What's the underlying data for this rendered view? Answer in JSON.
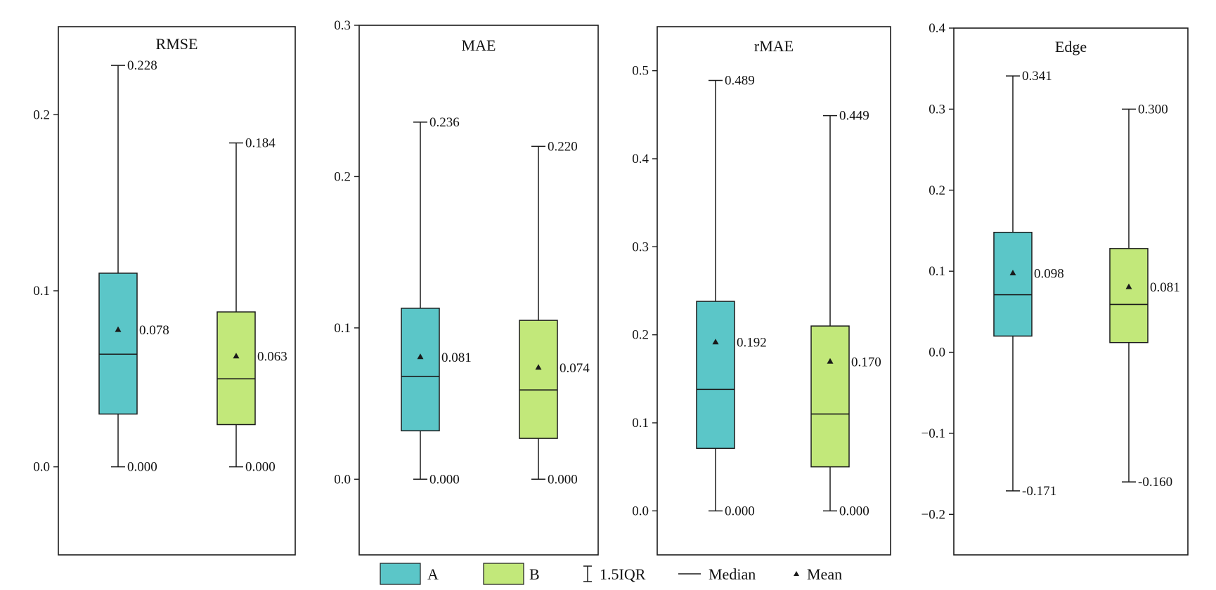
{
  "chart_data": [
    {
      "type": "box",
      "title": "RMSE",
      "ylim": [
        -0.05,
        0.25
      ],
      "yticks": [
        0.0,
        0.1,
        0.2
      ],
      "tick_labels": [
        "0.0",
        "0.1",
        "0.2"
      ],
      "series": [
        {
          "name": "A",
          "whisker_low": 0.0,
          "q1": 0.03,
          "median": 0.064,
          "q3": 0.11,
          "whisker_high": 0.228,
          "mean": 0.078,
          "labels": {
            "high": "0.228",
            "mean": "0.078",
            "low": "0.000"
          }
        },
        {
          "name": "B",
          "whisker_low": 0.0,
          "q1": 0.024,
          "median": 0.05,
          "q3": 0.088,
          "whisker_high": 0.184,
          "mean": 0.063,
          "labels": {
            "high": "0.184",
            "mean": "0.063",
            "low": "0.000"
          }
        }
      ]
    },
    {
      "type": "box",
      "title": "MAE",
      "ylim": [
        -0.05,
        0.3
      ],
      "yticks": [
        0.0,
        0.1,
        0.2,
        0.3
      ],
      "tick_labels": [
        "0.0",
        "0.1",
        "0.2",
        "0.3"
      ],
      "series": [
        {
          "name": "A",
          "whisker_low": 0.0,
          "q1": 0.032,
          "median": 0.068,
          "q3": 0.113,
          "whisker_high": 0.236,
          "mean": 0.081,
          "labels": {
            "high": "0.236",
            "mean": "0.081",
            "low": "0.000"
          }
        },
        {
          "name": "B",
          "whisker_low": 0.0,
          "q1": 0.027,
          "median": 0.059,
          "q3": 0.105,
          "whisker_high": 0.22,
          "mean": 0.074,
          "labels": {
            "high": "0.220",
            "mean": "0.074",
            "low": "0.000"
          }
        }
      ]
    },
    {
      "type": "box",
      "title": "rMAE",
      "ylim": [
        -0.05,
        0.55
      ],
      "yticks": [
        0.0,
        0.1,
        0.2,
        0.3,
        0.4,
        0.5
      ],
      "tick_labels": [
        "0.0",
        "0.1",
        "0.2",
        "0.3",
        "0.4",
        "0.5"
      ],
      "series": [
        {
          "name": "A",
          "whisker_low": 0.0,
          "q1": 0.071,
          "median": 0.138,
          "q3": 0.238,
          "whisker_high": 0.489,
          "mean": 0.192,
          "labels": {
            "high": "0.489",
            "mean": "0.192",
            "low": "0.000"
          }
        },
        {
          "name": "B",
          "whisker_low": 0.0,
          "q1": 0.05,
          "median": 0.11,
          "q3": 0.21,
          "whisker_high": 0.449,
          "mean": 0.17,
          "labels": {
            "high": "0.449",
            "mean": "0.170",
            "low": "0.000"
          }
        }
      ]
    },
    {
      "type": "box",
      "title": "Edge",
      "ylim": [
        -0.25,
        0.4
      ],
      "yticks": [
        -0.2,
        -0.1,
        0.0,
        0.1,
        0.2,
        0.3,
        0.4
      ],
      "tick_labels": [
        "−0.2",
        "−0.1",
        "0.0",
        "0.1",
        "0.2",
        "0.3",
        "0.4"
      ],
      "series": [
        {
          "name": "A",
          "whisker_low": -0.171,
          "q1": 0.02,
          "median": 0.071,
          "q3": 0.148,
          "whisker_high": 0.341,
          "mean": 0.098,
          "labels": {
            "high": "0.341",
            "mean": "0.098",
            "low": "-0.171"
          }
        },
        {
          "name": "B",
          "whisker_low": -0.16,
          "q1": 0.012,
          "median": 0.059,
          "q3": 0.128,
          "whisker_high": 0.3,
          "mean": 0.081,
          "labels": {
            "high": "0.300",
            "mean": "0.081",
            "low": "-0.160"
          }
        }
      ]
    }
  ],
  "colors": {
    "A": "#5bc6c8",
    "B": "#c2e87a",
    "line": "#1a1a1a"
  },
  "legend": {
    "items": [
      {
        "kind": "swatch",
        "series": "A",
        "label": "A"
      },
      {
        "kind": "swatch",
        "series": "B",
        "label": "B"
      },
      {
        "kind": "whisker",
        "label": "1.5IQR"
      },
      {
        "kind": "median",
        "label": "Median"
      },
      {
        "kind": "mean",
        "label": "Mean"
      }
    ]
  }
}
